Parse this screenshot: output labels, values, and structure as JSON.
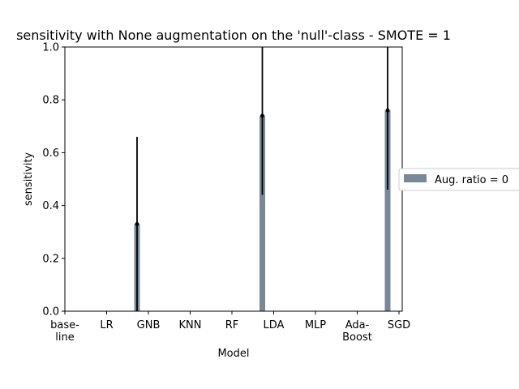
{
  "chart_data": {
    "type": "bar",
    "title": "sensitivity with None augmentation on the 'null'-class - SMOTE = 1",
    "xlabel": "Model",
    "ylabel": "sensitivity",
    "ylim": [
      0,
      1.0
    ],
    "yticks": [
      "0.0",
      "0.2",
      "0.4",
      "0.6",
      "0.8",
      "1.0"
    ],
    "categories": [
      [
        "base-",
        "line"
      ],
      [
        "LR"
      ],
      [
        "GNB"
      ],
      [
        "KNN"
      ],
      [
        "RF"
      ],
      [
        "LDA"
      ],
      [
        "MLP"
      ],
      [
        "Ada-",
        "Boost"
      ],
      [
        "SGD"
      ]
    ],
    "series": [
      {
        "name": "Aug. ratio = 0",
        "color": "#778899",
        "values": [
          0,
          0,
          0.33,
          0,
          0,
          0.74,
          0,
          0,
          0.76
        ],
        "errors": [
          0,
          0,
          0.33,
          0,
          0,
          0.3,
          0,
          0,
          0.3
        ]
      }
    ],
    "legend_position": "right",
    "grid": false
  }
}
